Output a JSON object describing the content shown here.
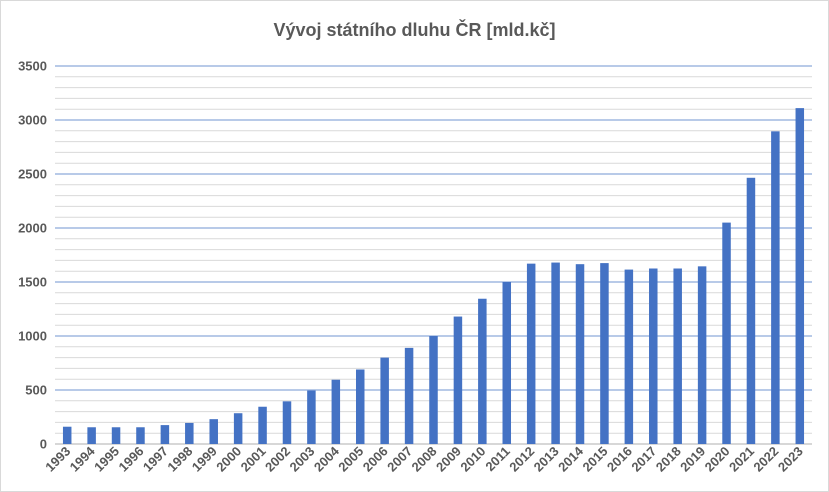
{
  "chart_data": {
    "type": "bar",
    "title": "Vývoj státního dluhu ČR [mld.kč]",
    "xlabel": "",
    "ylabel": "",
    "ylim": [
      0,
      3500
    ],
    "yticks": [
      0,
      500,
      1000,
      1500,
      2000,
      2500,
      3000,
      3500
    ],
    "grid": true,
    "legend": "none",
    "bar_color": "#4472c4",
    "major_grid_color": "#8eaadb",
    "minor_grid_color": "#d9d9d9",
    "categories": [
      "1993",
      "1994",
      "1995",
      "1996",
      "1997",
      "1998",
      "1999",
      "2000",
      "2001",
      "2002",
      "2003",
      "2004",
      "2005",
      "2006",
      "2007",
      "2008",
      "2009",
      "2010",
      "2011",
      "2012",
      "2013",
      "2014",
      "2015",
      "2016",
      "2017",
      "2018",
      "2019",
      "2020",
      "2021",
      "2022",
      "2023"
    ],
    "values": [
      160,
      155,
      155,
      155,
      175,
      195,
      230,
      285,
      345,
      395,
      495,
      595,
      690,
      800,
      890,
      1000,
      1180,
      1345,
      1500,
      1670,
      1680,
      1665,
      1675,
      1615,
      1625,
      1625,
      1645,
      2050,
      2465,
      2895,
      3110
    ]
  }
}
